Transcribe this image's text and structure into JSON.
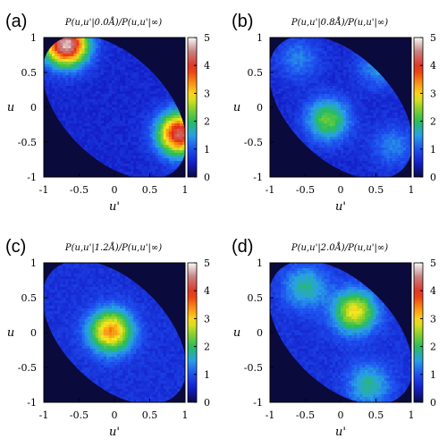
{
  "chart_data": [
    {
      "type": "heatmap",
      "panel_label": "(a)",
      "title": "P(u,u'|0.0Å)/P(u,u'|∞)",
      "xlabel": "u'",
      "ylabel": "u",
      "xlim": [
        -1,
        1
      ],
      "ylim": [
        -1,
        1
      ],
      "xticks": [
        "-1",
        "-0.5",
        "0",
        "0.5",
        "1"
      ],
      "yticks": [
        "1",
        "0.5",
        "0",
        "-0.5",
        "-1"
      ],
      "colorbar": {
        "range": [
          0,
          5
        ],
        "ticks": [
          "5",
          "4",
          "3",
          "2",
          "1",
          "0"
        ]
      },
      "peaks": [
        {
          "x": -0.68,
          "y": 0.9,
          "value": 4.8
        },
        {
          "x": 0.92,
          "y": -0.38,
          "value": 4.3
        }
      ],
      "background_value": 0.6
    },
    {
      "type": "heatmap",
      "panel_label": "(b)",
      "title": "P(u,u'|0.8Å)/P(u,u'|∞)",
      "xlabel": "u'",
      "ylabel": "u",
      "xlim": [
        -1,
        1
      ],
      "ylim": [
        -1,
        1
      ],
      "xticks": [
        "-1",
        "-0.5",
        "0",
        "0.5",
        "1"
      ],
      "yticks": [
        "1",
        "0.5",
        "0",
        "-0.5",
        "-1"
      ],
      "colorbar": {
        "range": [
          0,
          5
        ],
        "ticks": [
          "5",
          "4",
          "3",
          "2",
          "1",
          "0"
        ]
      },
      "peaks": [
        {
          "x": -0.18,
          "y": -0.18,
          "value": 2.3
        },
        {
          "x": 0.55,
          "y": 0.6,
          "value": 1.5
        },
        {
          "x": -0.6,
          "y": 0.7,
          "value": 1.3
        },
        {
          "x": 0.75,
          "y": -0.55,
          "value": 1.3
        }
      ],
      "background_value": 0.6
    },
    {
      "type": "heatmap",
      "panel_label": "(c)",
      "title": "P(u,u'|1.2Å)/P(u,u'|∞)",
      "xlabel": "u'",
      "ylabel": "u",
      "xlim": [
        -1,
        1
      ],
      "ylim": [
        -1,
        1
      ],
      "xticks": [
        "-1",
        "-0.5",
        "0",
        "0.5",
        "1"
      ],
      "yticks": [
        "1",
        "0.5",
        "0",
        "-0.5",
        "-1"
      ],
      "colorbar": {
        "range": [
          0,
          5
        ],
        "ticks": [
          "5",
          "4",
          "3",
          "2",
          "1",
          "0"
        ]
      },
      "peaks": [
        {
          "x": -0.05,
          "y": 0.02,
          "value": 3.4
        }
      ],
      "background_value": 0.7
    },
    {
      "type": "heatmap",
      "panel_label": "(d)",
      "title": "P(u,u'|2.0Å)/P(u,u'|∞)",
      "xlabel": "u'",
      "ylabel": "u",
      "xlim": [
        -1,
        1
      ],
      "ylim": [
        -1,
        1
      ],
      "xticks": [
        "-1",
        "-0.5",
        "0",
        "0.5",
        "1"
      ],
      "yticks": [
        "1",
        "0.5",
        "0",
        "-0.5",
        "-1"
      ],
      "colorbar": {
        "range": [
          0,
          5
        ],
        "ticks": [
          "5",
          "4",
          "3",
          "2",
          "1",
          "0"
        ]
      },
      "peaks": [
        {
          "x": 0.2,
          "y": 0.3,
          "value": 2.9
        },
        {
          "x": -0.5,
          "y": 0.65,
          "value": 1.8
        },
        {
          "x": 0.4,
          "y": -0.75,
          "value": 1.8
        }
      ],
      "background_value": 0.7
    }
  ]
}
